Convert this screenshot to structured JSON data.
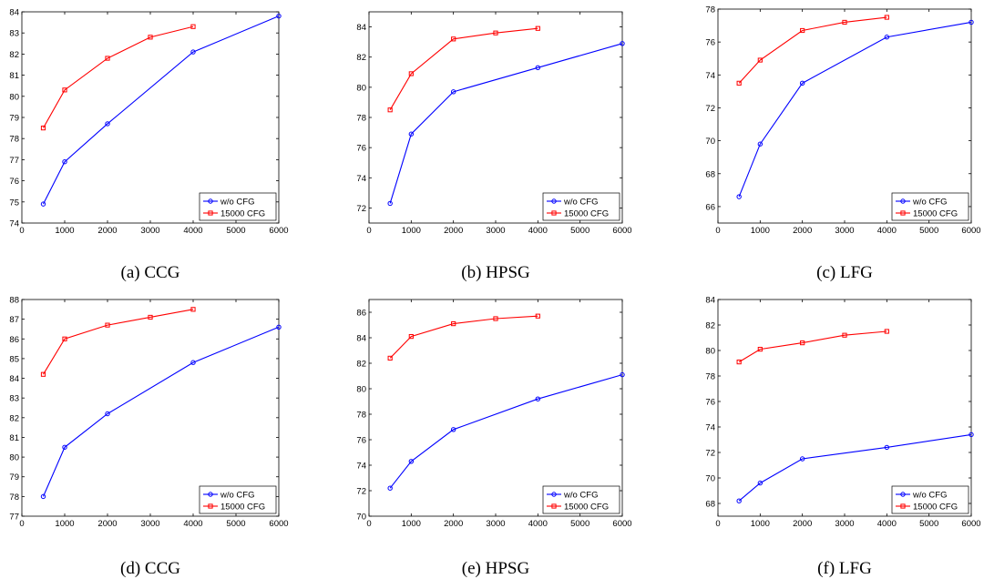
{
  "colors": {
    "series_1": "#0000ff",
    "series_2": "#ff0000",
    "axis": "#000000",
    "background": "#ffffff"
  },
  "legend_labels": [
    "w/o CFG",
    "15000 CFG"
  ],
  "chart_data": [
    {
      "type": "line",
      "panel": "a",
      "caption": "(a) CCG",
      "title": "",
      "xlabel": "",
      "ylabel": "",
      "xlim": [
        0,
        6000
      ],
      "ylim": [
        74,
        84
      ],
      "xticks": [
        0,
        1000,
        2000,
        3000,
        4000,
        5000,
        6000
      ],
      "yticks": [
        74,
        75,
        76,
        77,
        78,
        79,
        80,
        81,
        82,
        83,
        84
      ],
      "grid": false,
      "legend": "bottom-right",
      "series": [
        {
          "name": "w/o CFG",
          "color": "#0000ff",
          "marker": "circle",
          "x": [
            500,
            1000,
            2000,
            4000,
            6000
          ],
          "y": [
            74.9,
            76.9,
            78.7,
            82.1,
            83.8
          ]
        },
        {
          "name": "15000 CFG",
          "color": "#ff0000",
          "marker": "square",
          "x": [
            500,
            1000,
            2000,
            3000,
            4000
          ],
          "y": [
            78.5,
            80.3,
            81.8,
            82.8,
            83.3
          ]
        }
      ]
    },
    {
      "type": "line",
      "panel": "b",
      "caption": "(b) HPSG",
      "title": "",
      "xlabel": "",
      "ylabel": "",
      "xlim": [
        0,
        6000
      ],
      "ylim": [
        71,
        85
      ],
      "xticks": [
        0,
        1000,
        2000,
        3000,
        4000,
        5000,
        6000
      ],
      "yticks": [
        72,
        74,
        76,
        78,
        80,
        82,
        84
      ],
      "grid": false,
      "legend": "bottom-right",
      "series": [
        {
          "name": "w/o CFG",
          "color": "#0000ff",
          "marker": "circle",
          "x": [
            500,
            1000,
            2000,
            4000,
            6000
          ],
          "y": [
            72.3,
            76.9,
            79.7,
            81.3,
            82.9
          ]
        },
        {
          "name": "15000 CFG",
          "color": "#ff0000",
          "marker": "square",
          "x": [
            500,
            1000,
            2000,
            3000,
            4000
          ],
          "y": [
            78.5,
            80.9,
            83.2,
            83.6,
            83.9
          ]
        }
      ]
    },
    {
      "type": "line",
      "panel": "c",
      "caption": "(c) LFG",
      "title": "",
      "xlabel": "",
      "ylabel": "",
      "xlim": [
        0,
        6000
      ],
      "ylim": [
        65,
        78
      ],
      "xticks": [
        0,
        1000,
        2000,
        3000,
        4000,
        5000,
        6000
      ],
      "yticks": [
        66,
        68,
        70,
        72,
        74,
        76,
        78
      ],
      "grid": false,
      "legend": "bottom-right",
      "series": [
        {
          "name": "w/o CFG",
          "color": "#0000ff",
          "marker": "circle",
          "x": [
            500,
            1000,
            2000,
            4000,
            6000
          ],
          "y": [
            66.6,
            69.8,
            73.5,
            76.3,
            77.2
          ]
        },
        {
          "name": "15000 CFG",
          "color": "#ff0000",
          "marker": "square",
          "x": [
            500,
            1000,
            2000,
            3000,
            4000
          ],
          "y": [
            73.5,
            74.9,
            76.7,
            77.2,
            77.5
          ]
        }
      ]
    },
    {
      "type": "line",
      "panel": "d",
      "caption": "(d) CCG",
      "title": "",
      "xlabel": "",
      "ylabel": "",
      "xlim": [
        0,
        6000
      ],
      "ylim": [
        77,
        88
      ],
      "xticks": [
        0,
        1000,
        2000,
        3000,
        4000,
        5000,
        6000
      ],
      "yticks": [
        77,
        78,
        79,
        80,
        81,
        82,
        83,
        84,
        85,
        86,
        87,
        88
      ],
      "grid": false,
      "legend": "bottom-right",
      "series": [
        {
          "name": "w/o CFG",
          "color": "#0000ff",
          "marker": "circle",
          "x": [
            500,
            1000,
            2000,
            4000,
            6000
          ],
          "y": [
            78.0,
            80.5,
            82.2,
            84.8,
            86.6
          ]
        },
        {
          "name": "15000 CFG",
          "color": "#ff0000",
          "marker": "square",
          "x": [
            500,
            1000,
            2000,
            3000,
            4000
          ],
          "y": [
            84.2,
            86.0,
            86.7,
            87.1,
            87.5
          ]
        }
      ]
    },
    {
      "type": "line",
      "panel": "e",
      "caption": "(e) HPSG",
      "title": "",
      "xlabel": "",
      "ylabel": "",
      "xlim": [
        0,
        6000
      ],
      "ylim": [
        70,
        87
      ],
      "xticks": [
        0,
        1000,
        2000,
        3000,
        4000,
        5000,
        6000
      ],
      "yticks": [
        70,
        72,
        74,
        76,
        78,
        80,
        82,
        84,
        86
      ],
      "grid": false,
      "legend": "bottom-right",
      "series": [
        {
          "name": "w/o CFG",
          "color": "#0000ff",
          "marker": "circle",
          "x": [
            500,
            1000,
            2000,
            4000,
            6000
          ],
          "y": [
            72.2,
            74.3,
            76.8,
            79.2,
            81.1
          ]
        },
        {
          "name": "15000 CFG",
          "color": "#ff0000",
          "marker": "square",
          "x": [
            500,
            1000,
            2000,
            3000,
            4000
          ],
          "y": [
            82.4,
            84.1,
            85.1,
            85.5,
            85.7
          ]
        }
      ]
    },
    {
      "type": "line",
      "panel": "f",
      "caption": "(f) LFG",
      "title": "",
      "xlabel": "",
      "ylabel": "",
      "xlim": [
        0,
        6000
      ],
      "ylim": [
        67,
        84
      ],
      "xticks": [
        0,
        1000,
        2000,
        3000,
        4000,
        5000,
        6000
      ],
      "yticks": [
        68,
        70,
        72,
        74,
        76,
        78,
        80,
        82,
        84
      ],
      "grid": false,
      "legend": "bottom-right",
      "series": [
        {
          "name": "w/o CFG",
          "color": "#0000ff",
          "marker": "circle",
          "x": [
            500,
            1000,
            2000,
            4000,
            6000
          ],
          "y": [
            68.2,
            69.6,
            71.5,
            72.4,
            73.4
          ]
        },
        {
          "name": "15000 CFG",
          "color": "#ff0000",
          "marker": "square",
          "x": [
            500,
            1000,
            2000,
            3000,
            4000
          ],
          "y": [
            79.1,
            80.1,
            80.6,
            81.2,
            81.5
          ]
        }
      ]
    }
  ]
}
